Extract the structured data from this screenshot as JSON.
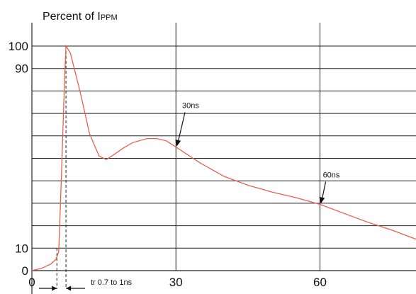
{
  "chart_data": {
    "type": "line",
    "title": "Percent of I",
    "title_subscript": "PPM",
    "xlabel": "",
    "ylabel": "",
    "xlim": [
      0,
      80
    ],
    "ylim": [
      0,
      100
    ],
    "grid": true,
    "x_ticks": [
      {
        "value": 0,
        "label": "0"
      },
      {
        "value": 30,
        "label": "30"
      },
      {
        "value": 60,
        "label": "60"
      }
    ],
    "y_ticks": [
      {
        "value": 0,
        "label": "0"
      },
      {
        "value": 10,
        "label": "10"
      },
      {
        "value": 90,
        "label": "90"
      },
      {
        "value": 100,
        "label": "100"
      }
    ],
    "grid_y": [
      10,
      20,
      30,
      40,
      50,
      60,
      70,
      80,
      90,
      100
    ],
    "grid_x": [
      30,
      60
    ],
    "series": [
      {
        "name": "",
        "color": "#e8614c",
        "points": [
          [
            0.0,
            0.0
          ],
          [
            2.0,
            1.0
          ],
          [
            4.0,
            3.0
          ],
          [
            5.0,
            5.0
          ],
          [
            5.6,
            8.5
          ],
          [
            6.2,
            45.0
          ],
          [
            6.8,
            85.0
          ],
          [
            7.1,
            100.0
          ],
          [
            8.0,
            97.0
          ],
          [
            10.0,
            80.0
          ],
          [
            12.0,
            61.0
          ],
          [
            14.0,
            51.0
          ],
          [
            15.5,
            49.5
          ],
          [
            17.0,
            51.5
          ],
          [
            19.0,
            54.5
          ],
          [
            21.0,
            57.0
          ],
          [
            24.0,
            58.8
          ],
          [
            26.0,
            58.8
          ],
          [
            28.0,
            57.8
          ],
          [
            30.0,
            55.0
          ],
          [
            35.0,
            48.0
          ],
          [
            40.0,
            42.0
          ],
          [
            45.0,
            38.0
          ],
          [
            50.0,
            35.0
          ],
          [
            55.0,
            32.5
          ],
          [
            60.0,
            29.5
          ],
          [
            65.0,
            25.5
          ],
          [
            70.0,
            21.5
          ],
          [
            75.0,
            18.0
          ],
          [
            80.0,
            14.0
          ]
        ]
      }
    ],
    "annotations": [
      {
        "text": "30ns",
        "point": [
          30,
          55
        ],
        "label_at": [
          31.3,
          72.4
        ]
      },
      {
        "text": "60ns",
        "point": [
          60,
          29.5
        ],
        "label_at": [
          60.6,
          41.5
        ]
      }
    ],
    "rise_time": {
      "label": "tr 0.7 to 1ns",
      "start_x": 5.2,
      "end_x": 7.1
    }
  }
}
